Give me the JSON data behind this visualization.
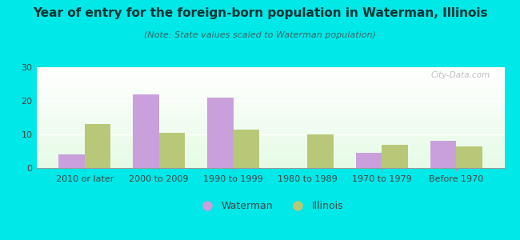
{
  "title": "Year of entry for the foreign-born population in Waterman, Illinois",
  "subtitle": "(Note: State values scaled to Waterman population)",
  "categories": [
    "2010 or later",
    "2000 to 2009",
    "1990 to 1999",
    "1980 to 1989",
    "1970 to 1979",
    "Before 1970"
  ],
  "waterman_values": [
    4,
    22,
    21,
    0,
    4.5,
    8
  ],
  "illinois_values": [
    13,
    10.5,
    11.5,
    10,
    7,
    6.5
  ],
  "waterman_color": "#c9a0dc",
  "illinois_color": "#b8c878",
  "background_outer": "#00e8e8",
  "ylim": [
    0,
    30
  ],
  "yticks": [
    0,
    10,
    20,
    30
  ],
  "bar_width": 0.35,
  "legend_waterman": "Waterman",
  "legend_illinois": "Illinois",
  "title_fontsize": 11,
  "subtitle_fontsize": 8,
  "tick_fontsize": 8,
  "watermark": "City-Data.com"
}
